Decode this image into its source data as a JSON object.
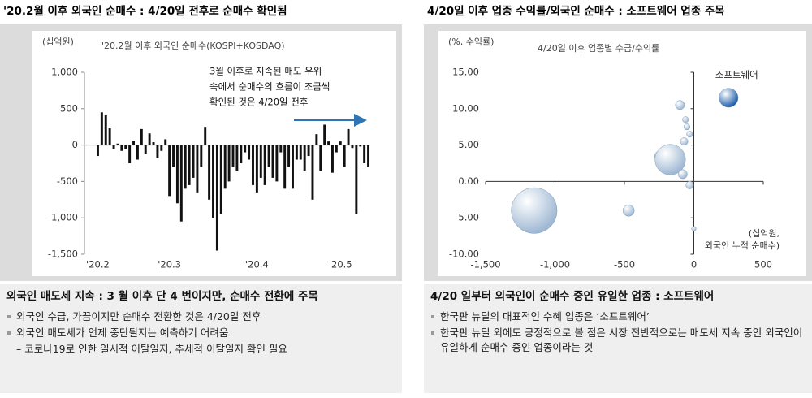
{
  "chart_data": [
    {
      "type": "bar",
      "title": "'20.2월 이후 외국인 순매수 : 4/20일 전후로 순매수 확인됨",
      "subtitle": "'20.2월 이후 외국인 순매수(KOSPI+KOSDAQ)",
      "ylabel": "(십억원)",
      "annotation": [
        "3월 이후로 지속된 매도 우위",
        "속에서 순매수의 흐름이 조금씩",
        "확인된 것은 4/20일 전후"
      ],
      "categories": [
        "'20.2",
        null,
        null,
        null,
        null,
        null,
        null,
        null,
        null,
        null,
        null,
        null,
        null,
        null,
        null,
        null,
        null,
        null,
        "'20.3",
        null,
        null,
        null,
        null,
        null,
        null,
        null,
        null,
        null,
        null,
        null,
        null,
        null,
        null,
        null,
        null,
        null,
        null,
        null,
        null,
        null,
        "'20.4",
        null,
        null,
        null,
        null,
        null,
        null,
        null,
        null,
        null,
        null,
        null,
        null,
        null,
        null,
        null,
        null,
        null,
        null,
        null,
        null,
        "'20.5",
        null,
        null,
        null,
        null,
        null,
        null,
        null
      ],
      "values": [
        -150,
        450,
        420,
        230,
        -50,
        20,
        -80,
        -50,
        -250,
        60,
        -200,
        220,
        -120,
        160,
        40,
        -180,
        -80,
        80,
        -700,
        -300,
        -800,
        -1050,
        -600,
        -550,
        -450,
        -650,
        -300,
        250,
        -750,
        -1000,
        -1450,
        -950,
        -600,
        -500,
        -300,
        -350,
        -250,
        -100,
        -200,
        -550,
        -650,
        -450,
        -550,
        -300,
        -450,
        -500,
        -100,
        -600,
        -300,
        -600,
        -200,
        -200,
        -350,
        -150,
        -750,
        150,
        -350,
        280,
        50,
        -380,
        -100,
        50,
        -300,
        220,
        -40,
        -950,
        -20,
        -250,
        -300
      ],
      "color": "#111111",
      "ylim": [
        -1500,
        1000
      ],
      "yticks": [
        {
          "value": -1500,
          "label": "-1,500"
        },
        {
          "value": -1000,
          "label": "-1,000"
        },
        -500,
        0,
        500,
        {
          "value": 1000,
          "label": "1,000"
        }
      ]
    },
    {
      "type": "bubble",
      "title": "4/20일 이후 업종 수익률/외국인 순매수 : 소프트웨어 업종 주목",
      "subtitle": "4/20일 이후 업종별 수급/수익률",
      "ylabel": "(%, 수익률)",
      "xlabel": [
        "(십억원,",
        "외국인 누적 순매수)"
      ],
      "series": [
        {
          "color": "#9fb8d3",
          "x": [
            -1150,
            -470,
            -100,
            -60,
            -50,
            -30,
            -70,
            -250,
            -170,
            -80,
            -30,
            0
          ],
          "values": [
            -4,
            -4,
            10.5,
            8.5,
            7.5,
            6.5,
            5.5,
            3.5,
            3,
            1,
            -0.5,
            -6.5
          ],
          "sizes": [
            60,
            15,
            12,
            8,
            8,
            8,
            10,
            12,
            40,
            12,
            10,
            6
          ]
        },
        {
          "name": "소프트웨어",
          "color": "#1f5fa8",
          "x": [
            250
          ],
          "values": [
            11.5
          ],
          "sizes": [
            25
          ]
        }
      ],
      "xlim": [
        -1500,
        500
      ],
      "ylim": [
        -10,
        15
      ],
      "xticks": [
        {
          "value": -1500,
          "label": "-1,500"
        },
        {
          "value": -1000,
          "label": "-1,000"
        },
        -500,
        0,
        500
      ],
      "yticks": [
        {
          "value": -10,
          "label": "-10.00"
        },
        {
          "value": -5,
          "label": "-5.00"
        },
        {
          "value": 0,
          "label": "0.00"
        },
        {
          "value": 5,
          "label": "5.00"
        },
        {
          "value": 10,
          "label": "10.00"
        },
        {
          "value": 15,
          "label": "15.00"
        }
      ]
    }
  ],
  "notes": [
    {
      "heading": "외국인 매도세 지속 : 3 월 이후 단 4 번이지만, 순매수 전환에 주목",
      "bullets": [
        "외국인 수급, 가끔이지만 순매수 전환한 것은 4/20일 전후",
        "외국인 매도세가 언제 중단될지는 예측하기 어려움"
      ],
      "sub": "– 코로나19로 인한 일시적 이탈일지, 추세적 이탈일지 확인 필요"
    },
    {
      "heading": "4/20 일부터 외국인이 순매수 중인 유일한 업종 : 소프트웨어",
      "bullets": [
        "한국판 뉴딜의 대표적인 수혜 업종은 ‘소프트웨어’",
        "한국판 뉴딜 외에도 긍정적으로 볼 점은 시장 전반적으로는 매도세 지속 중인 외국인이 유일하게 순매수 중인 업종이라는 것"
      ]
    }
  ]
}
